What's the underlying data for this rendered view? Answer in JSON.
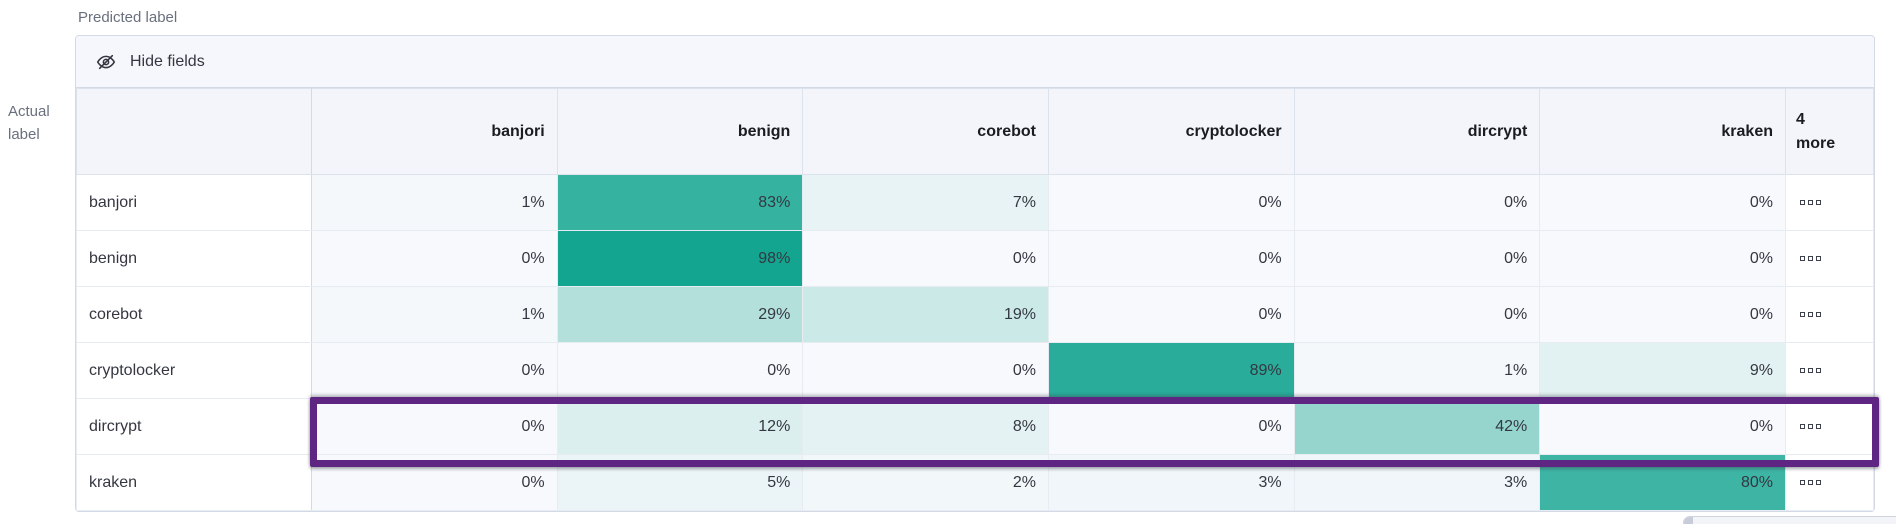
{
  "axis": {
    "predicted_label": "Predicted label",
    "actual_label": "Actual label"
  },
  "toolbar": {
    "hide_fields_label": "Hide fields",
    "hide_fields_icon": "eye-closed-icon"
  },
  "header": {
    "more_count": "4",
    "more_word": "more",
    "more_cell_icon": "boxes-horizontal-icon"
  },
  "colors": {
    "heat_min": "#f7f9fc",
    "heat_max": "#0fa38e",
    "highlight_border": "#5e2582",
    "header_bg": "#f3f5fa",
    "toolbar_bg": "#f5f7fc"
  },
  "chart_data": {
    "type": "heatmap",
    "columns": [
      "banjori",
      "benign",
      "corebot",
      "cryptolocker",
      "dircrypt",
      "kraken"
    ],
    "rows": [
      {
        "label": "banjori",
        "values": [
          1,
          83,
          7,
          0,
          0,
          0
        ]
      },
      {
        "label": "benign",
        "values": [
          0,
          98,
          0,
          0,
          0,
          0
        ]
      },
      {
        "label": "corebot",
        "values": [
          1,
          29,
          19,
          0,
          0,
          0
        ]
      },
      {
        "label": "cryptolocker",
        "values": [
          0,
          0,
          0,
          89,
          1,
          9
        ]
      },
      {
        "label": "dircrypt",
        "values": [
          0,
          12,
          8,
          0,
          42,
          0
        ]
      },
      {
        "label": "kraken",
        "values": [
          0,
          5,
          2,
          3,
          3,
          80
        ]
      }
    ],
    "value_suffix": "%",
    "highlighted_row": "dircrypt",
    "legend_position": "none",
    "grid": true
  }
}
